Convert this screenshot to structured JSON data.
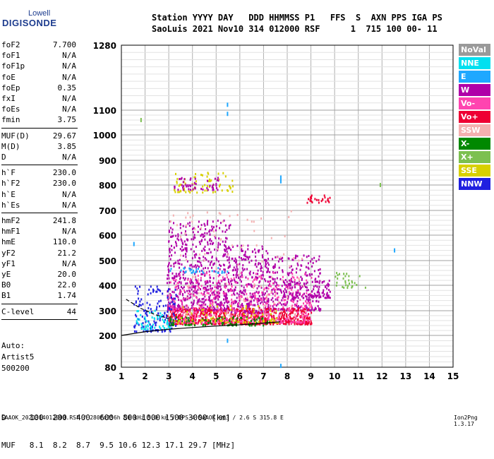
{
  "logo": {
    "top": "Lowell",
    "bottom": "DIGISONDE"
  },
  "header": {
    "line1": "Station YYYY DAY   DDD HHMMSS P1   FFS  S  AXN PPS IGA PS",
    "line2": "SaoLuis 2021 Nov10 314 012000 RSF      1  715 100 00- 11"
  },
  "params": [
    {
      "k": "foF2",
      "v": "7.700"
    },
    {
      "k": "foF1",
      "v": "N/A"
    },
    {
      "k": "foF1p",
      "v": "N/A"
    },
    {
      "k": "foE",
      "v": "N/A"
    },
    {
      "k": "foEp",
      "v": "0.35"
    },
    {
      "k": "fxI",
      "v": "N/A"
    },
    {
      "k": "foEs",
      "v": "N/A"
    },
    {
      "k": "fmin",
      "v": "3.75"
    },
    {
      "k": "MUF(D)",
      "v": "29.67"
    },
    {
      "k": "M(D)",
      "v": "3.85"
    },
    {
      "k": "D",
      "v": "N/A"
    },
    {
      "k": "h`F",
      "v": "230.0"
    },
    {
      "k": "h`F2",
      "v": "230.0"
    },
    {
      "k": "h`E",
      "v": "N/A"
    },
    {
      "k": "h`Es",
      "v": "N/A"
    },
    {
      "k": "hmF2",
      "v": "241.8"
    },
    {
      "k": "hmF1",
      "v": "N/A"
    },
    {
      "k": "hmE",
      "v": "110.0"
    },
    {
      "k": "yF2",
      "v": "21.2"
    },
    {
      "k": "yF1",
      "v": "N/A"
    },
    {
      "k": "yE",
      "v": "20.0"
    },
    {
      "k": "B0",
      "v": "22.0"
    },
    {
      "k": "B1",
      "v": "1.74"
    },
    {
      "k": "C-level",
      "v": "44"
    }
  ],
  "auto": {
    "l1": "Auto:",
    "l2": "Artist5",
    "l3": "500200"
  },
  "legend": [
    {
      "label": "NoVal",
      "color": "#9a9a9a"
    },
    {
      "label": "NNE",
      "color": "#00e0f0"
    },
    {
      "label": "E",
      "color": "#1fa8ff"
    },
    {
      "label": "W",
      "color": "#b000a8"
    },
    {
      "label": "Vo-",
      "color": "#ff44b0"
    },
    {
      "label": "Vo+",
      "color": "#ee0033"
    },
    {
      "label": "SSW",
      "color": "#f4b0b0"
    },
    {
      "label": "X-",
      "color": "#008800"
    },
    {
      "label": "X+",
      "color": "#7cc050"
    },
    {
      "label": "SSE",
      "color": "#d8d000"
    },
    {
      "label": "NNW",
      "color": "#2020e0"
    }
  ],
  "footer": {
    "line1": "D     100  200  400  600  800 1000 1500 3000 [km]",
    "line2": "MUF   8.1  8.2  8.7  9.5 10.6 12.3 17.1 29.7 [MHz]",
    "line3": "SAAOK_2021314012000.RSF / 280fx256h 50 kHz 5.0 km / DPS-4 SAAOK 903 / 2.6 S 315.8 E",
    "version": "Ion2Png 1.3.17"
  },
  "chart_data": {
    "type": "scatter",
    "title": "",
    "xlabel": "",
    "ylabel": "",
    "xlim": [
      1,
      15
    ],
    "ylim": [
      80,
      1280
    ],
    "x_ticks": [
      1,
      2,
      3,
      4,
      5,
      6,
      7,
      8,
      9,
      10,
      11,
      12,
      13,
      14,
      15
    ],
    "y_ticks": [
      80,
      200,
      300,
      400,
      500,
      600,
      700,
      800,
      900,
      1000,
      1100,
      1280
    ],
    "regions": [
      {
        "color": "W",
        "x": [
          2.9,
          5.6
        ],
        "y": [
          300,
          660
        ],
        "n": 650
      },
      {
        "color": "W",
        "x": [
          5.6,
          7.2
        ],
        "y": [
          290,
          560
        ],
        "n": 320
      },
      {
        "color": "W",
        "x": [
          7.2,
          9.4
        ],
        "y": [
          300,
          520
        ],
        "n": 240
      },
      {
        "color": "Vo+",
        "x": [
          2.9,
          9.0
        ],
        "y": [
          245,
          310
        ],
        "n": 700
      },
      {
        "color": "Vo-",
        "x": [
          3.0,
          9.0
        ],
        "y": [
          250,
          450
        ],
        "n": 450
      },
      {
        "color": "NNW",
        "x": [
          1.5,
          3.3
        ],
        "y": [
          215,
          395
        ],
        "n": 140
      },
      {
        "color": "NNE",
        "x": [
          1.6,
          3.1
        ],
        "y": [
          225,
          300
        ],
        "n": 60
      },
      {
        "color": "X-",
        "x": [
          3.0,
          7.4
        ],
        "y": [
          240,
          275
        ],
        "n": 90
      },
      {
        "color": "SSE",
        "x": [
          3.2,
          7.6
        ],
        "y": [
          250,
          320
        ],
        "n": 80
      },
      {
        "color": "X+",
        "x": [
          10.0,
          11.3
        ],
        "y": [
          390,
          450
        ],
        "n": 30
      },
      {
        "color": "SSE",
        "x": [
          3.2,
          5.7
        ],
        "y": [
          770,
          850
        ],
        "n": 70
      },
      {
        "color": "W",
        "x": [
          3.2,
          5.2
        ],
        "y": [
          780,
          830
        ],
        "n": 50
      },
      {
        "color": "Vo+",
        "x": [
          8.7,
          9.8
        ],
        "y": [
          730,
          760
        ],
        "n": 25
      },
      {
        "color": "W",
        "x": [
          7.8,
          9.8
        ],
        "y": [
          350,
          420
        ],
        "n": 120
      },
      {
        "color": "SSW",
        "x": [
          3.0,
          9.0
        ],
        "y": [
          280,
          700
        ],
        "n": 120
      },
      {
        "color": "E",
        "x": [
          3.0,
          5.5
        ],
        "y": [
          450,
          470
        ],
        "n": 30
      }
    ],
    "points": [
      {
        "x": 5.45,
        "y": 1115,
        "c": "E"
      },
      {
        "x": 5.45,
        "y": 1085,
        "c": "E"
      },
      {
        "x": 7.7,
        "y": 830,
        "c": "E"
      },
      {
        "x": 7.7,
        "y": 815,
        "c": "E"
      },
      {
        "x": 7.7,
        "y": 85,
        "c": "E"
      },
      {
        "x": 5.45,
        "y": 180,
        "c": "E"
      },
      {
        "x": 1.8,
        "y": 1060,
        "c": "X+"
      },
      {
        "x": 12.5,
        "y": 540,
        "c": "E"
      },
      {
        "x": 1.5,
        "y": 565,
        "c": "E"
      },
      {
        "x": 11.9,
        "y": 800,
        "c": "X+"
      }
    ],
    "lines": [
      {
        "name": "",
        "x": [
          1.0,
          2.0,
          3.0,
          4.0,
          5.0,
          6.0,
          7.0,
          7.7
        ],
        "y": [
          200,
          215,
          225,
          232,
          238,
          243,
          250,
          255
        ]
      },
      {
        "name": "",
        "x": [
          1.2,
          1.8,
          2.4,
          3.0
        ],
        "y": [
          345,
          310,
          285,
          268
        ],
        "style": "dashed"
      }
    ]
  }
}
